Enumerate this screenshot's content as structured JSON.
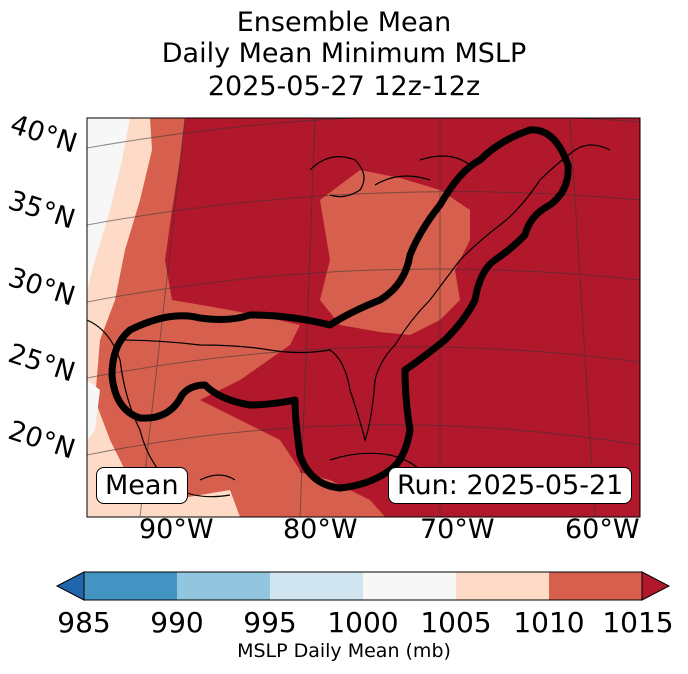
{
  "title": {
    "line1": "Ensemble Mean",
    "line2": "Daily Mean Minimum MSLP",
    "line3": "2025-05-27 12z-12z"
  },
  "map": {
    "lat_labels": [
      "40°N",
      "35°N",
      "30°N",
      "25°N",
      "20°N"
    ],
    "lon_labels": [
      "90°W",
      "80°W",
      "70°W",
      "60°W"
    ],
    "mean_label": "Mean",
    "run_label": "Run: 2025-05-21"
  },
  "colorbar": {
    "ticks": [
      "985",
      "990",
      "995",
      "1000",
      "1005",
      "1010",
      "1015"
    ],
    "label": "MSLP Daily Mean (mb)",
    "colors": {
      "below": "#2166ac",
      "985-990": "#4393c3",
      "990-995": "#92c5de",
      "995-1000": "#d1e5f0",
      "1000-1005": "#f7f7f7",
      "1005-1010": "#fddbc7",
      "1010-1015": "#d6604d",
      "above": "#b2182b"
    }
  }
}
